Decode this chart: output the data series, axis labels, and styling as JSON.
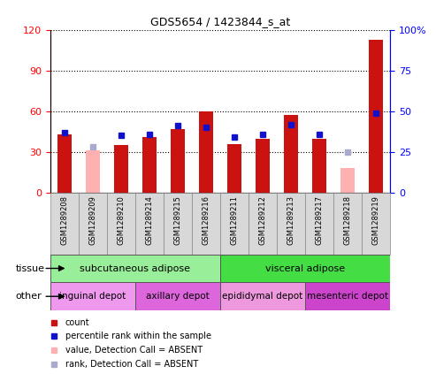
{
  "title": "GDS5654 / 1423844_s_at",
  "samples": [
    "GSM1289208",
    "GSM1289209",
    "GSM1289210",
    "GSM1289214",
    "GSM1289215",
    "GSM1289216",
    "GSM1289211",
    "GSM1289212",
    "GSM1289213",
    "GSM1289217",
    "GSM1289218",
    "GSM1289219"
  ],
  "count_values": [
    43,
    null,
    35,
    41,
    47,
    60,
    36,
    40,
    57,
    40,
    null,
    113
  ],
  "rank_values": [
    37,
    null,
    35,
    36,
    41,
    40,
    34,
    36,
    42,
    36,
    null,
    49
  ],
  "absent_count": [
    null,
    31,
    null,
    null,
    null,
    null,
    null,
    null,
    null,
    null,
    18,
    null
  ],
  "absent_rank": [
    null,
    28,
    null,
    null,
    null,
    null,
    null,
    null,
    null,
    null,
    25,
    null
  ],
  "ylim_left": [
    0,
    120
  ],
  "ylim_right": [
    0,
    100
  ],
  "yticks_left": [
    0,
    30,
    60,
    90,
    120
  ],
  "yticks_right": [
    0,
    25,
    50,
    75,
    100
  ],
  "ytick_labels_left": [
    "0",
    "30",
    "60",
    "90",
    "120"
  ],
  "ytick_labels_right": [
    "0",
    "25",
    "50",
    "75",
    "100%"
  ],
  "bar_color": "#cc1111",
  "rank_color": "#1111cc",
  "absent_bar_color": "#ffb0b0",
  "absent_rank_color": "#aaaacc",
  "tissue_groups": [
    {
      "label": "subcutaneous adipose",
      "start": 0,
      "end": 6,
      "color": "#99ee99"
    },
    {
      "label": "visceral adipose",
      "start": 6,
      "end": 12,
      "color": "#44dd44"
    }
  ],
  "other_groups": [
    {
      "label": "inguinal depot",
      "start": 0,
      "end": 3,
      "color": "#ee99ee"
    },
    {
      "label": "axillary depot",
      "start": 3,
      "end": 6,
      "color": "#dd66dd"
    },
    {
      "label": "epididymal depot",
      "start": 6,
      "end": 9,
      "color": "#ee99dd"
    },
    {
      "label": "mesenteric depot",
      "start": 9,
      "end": 12,
      "color": "#cc44cc"
    }
  ],
  "legend_items": [
    {
      "label": "count",
      "color": "#cc1111"
    },
    {
      "label": "percentile rank within the sample",
      "color": "#1111cc"
    },
    {
      "label": "value, Detection Call = ABSENT",
      "color": "#ffb0b0"
    },
    {
      "label": "rank, Detection Call = ABSENT",
      "color": "#aaaacc"
    }
  ],
  "bar_width": 0.5,
  "rank_marker_size": 5,
  "background_color": "#ffffff",
  "plot_bg_color": "#ffffff"
}
